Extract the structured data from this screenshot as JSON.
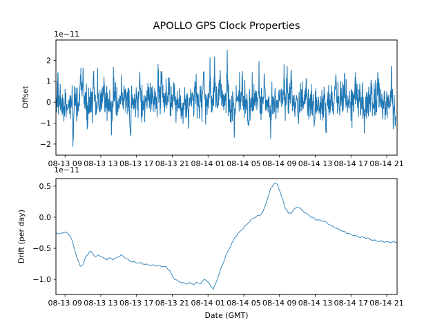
{
  "figure": {
    "title": "APOLLO GPS Clock Properties",
    "background_color": "#ffffff",
    "line_color": "#1f77b4",
    "axis_color": "#000000"
  },
  "chart_data": [
    {
      "type": "line",
      "title": "APOLLO GPS Clock Properties",
      "ylabel": "Offset",
      "xlabel": "",
      "scale_factor_text": "1e−11",
      "legend": "none",
      "grid": false,
      "xlim_hours_since_0813_0000": [
        7.98,
        46.16
      ],
      "ylim": [
        -2.53,
        2.97
      ],
      "yticks": [
        {
          "v": 2,
          "label": "2"
        },
        {
          "v": 1,
          "label": "1"
        },
        {
          "v": 0,
          "label": "0"
        },
        {
          "v": -1,
          "label": "−1"
        },
        {
          "v": -2,
          "label": "−2"
        }
      ],
      "xticks": [
        {
          "hour": 9,
          "label": "08-13 09"
        },
        {
          "hour": 13,
          "label": "08-13 13"
        },
        {
          "hour": 17,
          "label": "08-13 17"
        },
        {
          "hour": 21,
          "label": "08-13 21"
        },
        {
          "hour": 25,
          "label": "08-14 01"
        },
        {
          "hour": 29,
          "label": "08-14 05"
        },
        {
          "hour": 33,
          "label": "08-14 09"
        },
        {
          "hour": 37,
          "label": "08-14 13"
        },
        {
          "hour": 41,
          "label": "08-14 17"
        },
        {
          "hour": 45,
          "label": "08-14 21"
        }
      ],
      "series_spec": {
        "name": "offset",
        "kind": "noisy-line",
        "units": "1e-11",
        "hours_range": [
          8.0,
          46.0
        ],
        "n_points": 1400,
        "noise_sigma": 0.42,
        "random_spike_probability": 0.008,
        "random_spike_amplitude": [
          0.8,
          1.7
        ],
        "seed": 42,
        "spike_events_hour_amplitude": [
          [
            8.2,
            1.35
          ],
          [
            8.9,
            -1.0
          ],
          [
            9.9,
            -2.2
          ],
          [
            10.75,
            2.05
          ],
          [
            11.0,
            1.75
          ],
          [
            11.5,
            -1.2
          ],
          [
            12.2,
            1.3
          ],
          [
            13.3,
            1.05
          ],
          [
            14.2,
            -1.45
          ],
          [
            15.3,
            1.2
          ],
          [
            16.3,
            -1.25
          ],
          [
            17.4,
            1.45
          ],
          [
            18.3,
            1.15
          ],
          [
            19.45,
            1.95
          ],
          [
            19.8,
            1.75
          ],
          [
            20.6,
            1.3
          ],
          [
            21.2,
            1.5
          ],
          [
            22.1,
            -1.5
          ],
          [
            22.8,
            -1.85
          ],
          [
            23.6,
            1.2
          ],
          [
            24.5,
            1.8
          ],
          [
            25.2,
            1.4
          ],
          [
            25.75,
            2.6
          ],
          [
            26.35,
            1.9
          ],
          [
            27.15,
            2.35
          ],
          [
            27.55,
            -1.35
          ],
          [
            27.95,
            -2.0
          ],
          [
            28.8,
            1.25
          ],
          [
            29.5,
            -1.45
          ],
          [
            30.7,
            1.7
          ],
          [
            31.3,
            1.15
          ],
          [
            32.0,
            -1.5
          ],
          [
            33.5,
            2.15
          ],
          [
            33.85,
            2.25
          ],
          [
            34.3,
            1.4
          ],
          [
            35.1,
            -1.25
          ],
          [
            36.0,
            1.15
          ],
          [
            36.9,
            -1.45
          ],
          [
            38.2,
            -1.55
          ],
          [
            39.3,
            1.8
          ],
          [
            40.3,
            1.25
          ],
          [
            41.5,
            1.7
          ],
          [
            42.5,
            -1.45
          ],
          [
            43.3,
            1.15
          ],
          [
            44.0,
            1.5
          ],
          [
            44.9,
            -1.25
          ],
          [
            45.5,
            1.4
          ],
          [
            45.95,
            -2.2
          ]
        ]
      }
    },
    {
      "type": "line",
      "title": "",
      "ylabel": "Drift (per day)",
      "xlabel": "Date (GMT)",
      "scale_factor_text": "1e−11",
      "legend": "none",
      "grid": false,
      "xlim_hours_since_0813_0000": [
        7.98,
        46.16
      ],
      "ylim": [
        -1.244,
        0.622
      ],
      "yticks": [
        {
          "v": 0.5,
          "label": "0.5"
        },
        {
          "v": 0.0,
          "label": "0.0"
        },
        {
          "v": -0.5,
          "label": "−0.5"
        },
        {
          "v": -1.0,
          "label": "−1.0"
        }
      ],
      "xticks": [
        {
          "hour": 9,
          "label": "08-13 09"
        },
        {
          "hour": 13,
          "label": "08-13 13"
        },
        {
          "hour": 17,
          "label": "08-13 17"
        },
        {
          "hour": 21,
          "label": "08-13 21"
        },
        {
          "hour": 25,
          "label": "08-14 01"
        },
        {
          "hour": 29,
          "label": "08-14 05"
        },
        {
          "hour": 33,
          "label": "08-14 09"
        },
        {
          "hour": 37,
          "label": "08-14 13"
        },
        {
          "hour": 41,
          "label": "08-14 17"
        },
        {
          "hour": 45,
          "label": "08-14 21"
        }
      ],
      "series_spec": {
        "name": "drift",
        "kind": "smooth-line",
        "units": "1e-11",
        "points_hour_value": [
          [
            8.0,
            -0.25
          ],
          [
            8.4,
            -0.27
          ],
          [
            8.7,
            -0.25
          ],
          [
            9.0,
            -0.24
          ],
          [
            9.3,
            -0.26
          ],
          [
            9.6,
            -0.3
          ],
          [
            10.0,
            -0.48
          ],
          [
            10.4,
            -0.68
          ],
          [
            10.7,
            -0.79
          ],
          [
            11.0,
            -0.76
          ],
          [
            11.4,
            -0.62
          ],
          [
            11.8,
            -0.55
          ],
          [
            12.1,
            -0.58
          ],
          [
            12.4,
            -0.64
          ],
          [
            12.8,
            -0.61
          ],
          [
            13.2,
            -0.65
          ],
          [
            13.6,
            -0.68
          ],
          [
            14.0,
            -0.66
          ],
          [
            14.5,
            -0.68
          ],
          [
            15.0,
            -0.63
          ],
          [
            15.3,
            -0.61
          ],
          [
            15.7,
            -0.65
          ],
          [
            16.2,
            -0.7
          ],
          [
            16.6,
            -0.72
          ],
          [
            17.0,
            -0.73
          ],
          [
            17.5,
            -0.74
          ],
          [
            18.0,
            -0.76
          ],
          [
            18.6,
            -0.77
          ],
          [
            19.2,
            -0.78
          ],
          [
            19.8,
            -0.79
          ],
          [
            20.3,
            -0.8
          ],
          [
            20.7,
            -0.86
          ],
          [
            21.1,
            -0.97
          ],
          [
            21.5,
            -1.02
          ],
          [
            22.0,
            -1.05
          ],
          [
            22.5,
            -1.07
          ],
          [
            23.0,
            -1.06
          ],
          [
            23.4,
            -1.08
          ],
          [
            23.8,
            -1.05
          ],
          [
            24.2,
            -1.07
          ],
          [
            24.6,
            -0.99
          ],
          [
            25.0,
            -1.05
          ],
          [
            25.3,
            -1.1
          ],
          [
            25.6,
            -1.16
          ],
          [
            25.9,
            -1.05
          ],
          [
            26.2,
            -0.93
          ],
          [
            26.6,
            -0.77
          ],
          [
            27.0,
            -0.62
          ],
          [
            27.5,
            -0.47
          ],
          [
            28.0,
            -0.33
          ],
          [
            28.5,
            -0.24
          ],
          [
            29.0,
            -0.17
          ],
          [
            29.5,
            -0.09
          ],
          [
            30.0,
            -0.02
          ],
          [
            30.4,
            0.01
          ],
          [
            30.8,
            0.03
          ],
          [
            31.2,
            0.1
          ],
          [
            31.6,
            0.28
          ],
          [
            32.0,
            0.45
          ],
          [
            32.3,
            0.53
          ],
          [
            32.5,
            0.55
          ],
          [
            32.8,
            0.52
          ],
          [
            33.2,
            0.35
          ],
          [
            33.6,
            0.17
          ],
          [
            34.0,
            0.06
          ],
          [
            34.3,
            0.07
          ],
          [
            34.6,
            0.12
          ],
          [
            35.0,
            0.17
          ],
          [
            35.4,
            0.13
          ],
          [
            35.8,
            0.08
          ],
          [
            36.2,
            0.04
          ],
          [
            36.6,
            0.0
          ],
          [
            37.0,
            -0.03
          ],
          [
            37.4,
            -0.05
          ],
          [
            37.8,
            -0.055
          ],
          [
            38.2,
            -0.08
          ],
          [
            38.6,
            -0.12
          ],
          [
            39.0,
            -0.15
          ],
          [
            39.5,
            -0.19
          ],
          [
            40.0,
            -0.22
          ],
          [
            40.5,
            -0.25
          ],
          [
            41.0,
            -0.28
          ],
          [
            41.5,
            -0.3
          ],
          [
            42.0,
            -0.32
          ],
          [
            42.4,
            -0.325
          ],
          [
            42.7,
            -0.33
          ],
          [
            43.0,
            -0.35
          ],
          [
            43.5,
            -0.37
          ],
          [
            44.0,
            -0.385
          ],
          [
            44.5,
            -0.39
          ],
          [
            45.0,
            -0.4
          ],
          [
            45.5,
            -0.4
          ],
          [
            46.1,
            -0.4
          ]
        ]
      }
    }
  ]
}
